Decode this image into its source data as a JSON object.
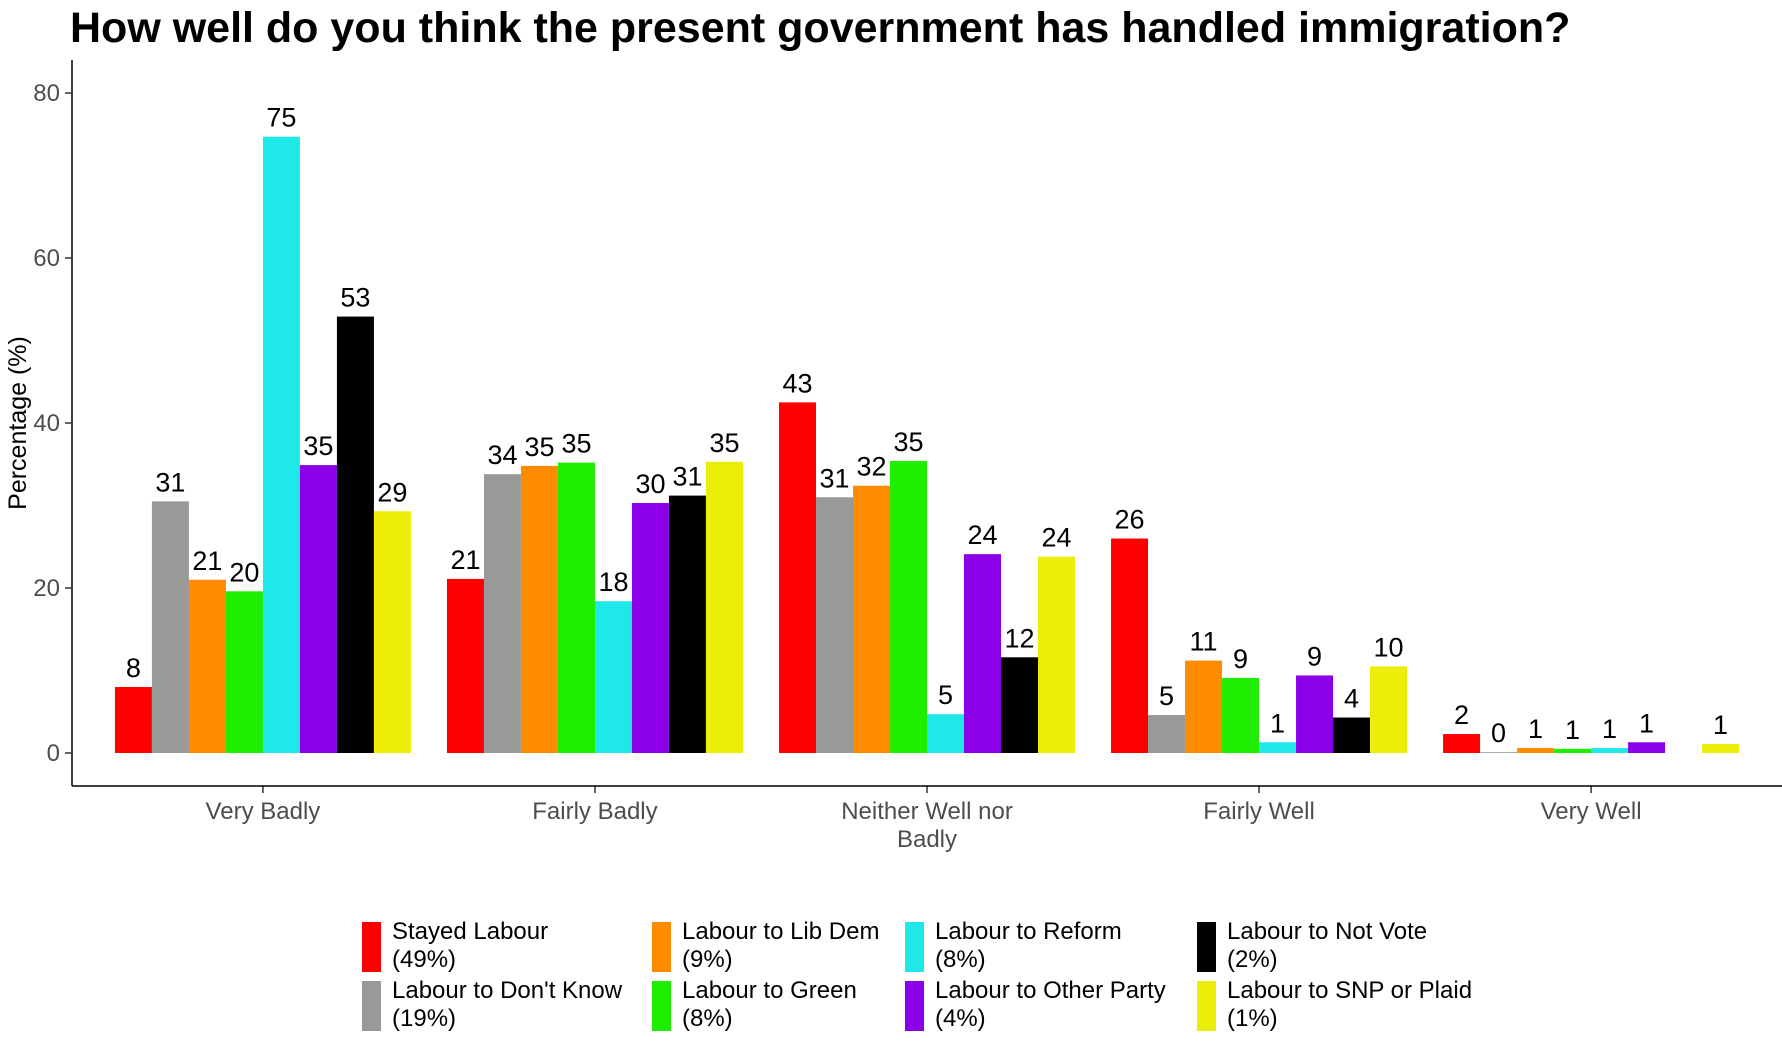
{
  "chart_data": {
    "type": "bar",
    "title": "How well do you think the present government has handled immigration?",
    "xlabel": "",
    "ylabel": "Percentage (%)",
    "ylim": [
      -4,
      84
    ],
    "yticks": [
      0,
      20,
      40,
      60,
      80
    ],
    "grid": false,
    "legend_position": "bottom",
    "categories": [
      "Very Badly",
      "Fairly Badly",
      "Neither Well nor Badly",
      "Fairly Well",
      "Very Well"
    ],
    "category_label_lines": [
      [
        "Very Badly"
      ],
      [
        "Fairly Badly"
      ],
      [
        "Neither Well nor",
        "Badly"
      ],
      [
        "Fairly Well"
      ],
      [
        "Very Well"
      ]
    ],
    "series": [
      {
        "name": "Stayed Labour",
        "share": "(49%)",
        "color": "#ff0000",
        "values": [
          8.0,
          21.1,
          42.5,
          26.0,
          2.3
        ],
        "labels": [
          "8",
          "21",
          "43",
          "26",
          "2"
        ]
      },
      {
        "name": "Labour to Don't Know",
        "share": "(19%)",
        "color": "#999999",
        "values": [
          30.5,
          33.8,
          31.0,
          4.6,
          0.1
        ],
        "labels": [
          "31",
          "34",
          "31",
          "5",
          "0"
        ]
      },
      {
        "name": "Labour to Lib Dem",
        "share": "(9%)",
        "color": "#ff8c00",
        "values": [
          21.0,
          34.8,
          32.4,
          11.2,
          0.6
        ],
        "labels": [
          "21",
          "35",
          "32",
          "11",
          "1"
        ]
      },
      {
        "name": "Labour to Green",
        "share": "(8%)",
        "color": "#1fee00",
        "values": [
          19.6,
          35.2,
          35.4,
          9.1,
          0.5
        ],
        "labels": [
          "20",
          "35",
          "35",
          "9",
          "1"
        ]
      },
      {
        "name": "Labour to Reform",
        "share": "(8%)",
        "color": "#1fe8e8",
        "values": [
          74.7,
          18.4,
          4.7,
          1.3,
          0.6
        ],
        "labels": [
          "75",
          "18",
          "5",
          "1",
          "1"
        ]
      },
      {
        "name": "Labour to Other Party",
        "share": "(4%)",
        "color": "#8b00e8",
        "values": [
          34.9,
          30.3,
          24.1,
          9.4,
          1.3
        ],
        "labels": [
          "35",
          "30",
          "24",
          "9",
          "1"
        ]
      },
      {
        "name": "Labour to Not Vote",
        "share": "(2%)",
        "color": "#000000",
        "values": [
          52.9,
          31.2,
          11.6,
          4.3,
          0.0
        ],
        "labels": [
          "53",
          "31",
          "12",
          "4",
          ""
        ]
      },
      {
        "name": "Labour to SNP or Plaid",
        "share": "(1%)",
        "color": "#eded0a",
        "values": [
          29.3,
          35.3,
          23.8,
          10.5,
          1.1
        ],
        "labels": [
          "29",
          "35",
          "24",
          "10",
          "1"
        ]
      }
    ]
  }
}
